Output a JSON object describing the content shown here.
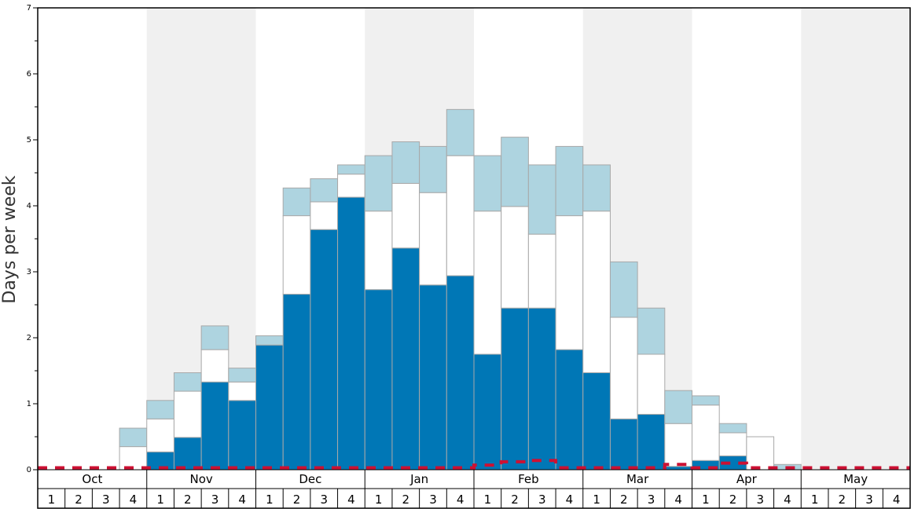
{
  "chart_data": {
    "type": "bar",
    "stacked": true,
    "ylabel": "Days per week",
    "ylim": [
      0,
      7
    ],
    "y_ticks": [
      "0",
      "1",
      "2",
      "3",
      "4",
      "5",
      "6",
      "7"
    ],
    "months": [
      "Oct",
      "Nov",
      "Dec",
      "Jan",
      "Feb",
      "Mar",
      "Apr",
      "May"
    ],
    "weeks": [
      "1",
      "2",
      "3",
      "4"
    ],
    "alternate_month_shading": true,
    "colors": {
      "dark": "#0077b6",
      "mid": "#ffffff",
      "light": "#aed4e0",
      "shade": "#f0f0f0",
      "line": "#cc1133"
    },
    "series": [
      {
        "values": [
          0,
          0,
          0,
          0,
          0.27,
          0.49,
          1.33,
          1.05,
          1.89,
          2.66,
          3.64,
          4.13,
          2.73,
          3.36,
          2.8,
          2.94,
          1.75,
          2.45,
          2.45,
          1.82,
          1.47,
          0.77,
          0.84,
          0.05,
          0.14,
          0.21,
          0,
          0,
          0,
          0,
          0,
          0
        ]
      },
      {
        "values": [
          0,
          0,
          0,
          0.35,
          0.5,
          0.7,
          0.49,
          0.28,
          0,
          1.19,
          0.42,
          0.35,
          1.19,
          0.98,
          1.4,
          1.82,
          2.17,
          1.54,
          1.12,
          2.03,
          2.45,
          1.54,
          0.91,
          0.65,
          0.84,
          0.35,
          0.5,
          0,
          0,
          0,
          0,
          0
        ]
      },
      {
        "values": [
          0,
          0,
          0,
          0.28,
          0.28,
          0.28,
          0.36,
          0.21,
          0.14,
          0.42,
          0.35,
          0.14,
          0.84,
          0.63,
          0.7,
          0.7,
          0.84,
          1.05,
          1.05,
          1.05,
          0.7,
          0.84,
          0.7,
          0.5,
          0.14,
          0.14,
          0,
          0.08,
          0,
          0,
          0,
          0
        ]
      }
    ],
    "line": {
      "style": "dashed",
      "values": [
        0.03,
        0.03,
        0.03,
        0.03,
        0.03,
        0.03,
        0.03,
        0.03,
        0.03,
        0.03,
        0.03,
        0.03,
        0.03,
        0.03,
        0.03,
        0.03,
        0.07,
        0.12,
        0.14,
        0.03,
        0.03,
        0.03,
        0.03,
        0.08,
        0.03,
        0.1,
        0.03,
        0.03,
        0.03,
        0.03,
        0.03,
        0.03
      ]
    }
  }
}
